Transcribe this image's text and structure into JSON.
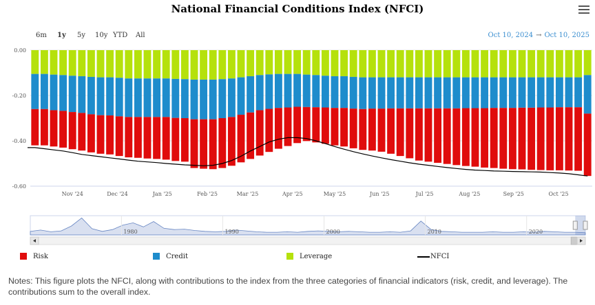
{
  "title": "National Financial Conditions Index (NFCI)",
  "range_buttons": [
    {
      "label": "6m",
      "active": false
    },
    {
      "label": "1y",
      "active": true
    },
    {
      "label": "5y",
      "active": false
    },
    {
      "label": "10y",
      "active": false
    },
    {
      "label": "YTD",
      "active": false
    },
    {
      "label": "All",
      "active": false
    }
  ],
  "date_range": {
    "from": "Oct 10, 2024",
    "arrow": "→",
    "to": "Oct 10, 2025"
  },
  "chart_data": {
    "type": "bar",
    "stacked": true,
    "title": "National Financial Conditions Index (NFCI)",
    "ylim": [
      -0.6,
      0.0
    ],
    "yticks": [
      "0.00",
      "-0.20",
      "-0.40",
      "-0.60"
    ],
    "ytick_values": [
      0.0,
      -0.2,
      -0.4,
      -0.6
    ],
    "xticks": [
      "Nov '24",
      "Dec '24",
      "Jan '25",
      "Feb '25",
      "Mar '25",
      "Apr '25",
      "May '25",
      "Jun '25",
      "Jul '25",
      "Aug '25",
      "Sep '25",
      "Oct '25"
    ],
    "xtick_weeks": [
      4.5,
      9.3,
      14.1,
      18.9,
      23.2,
      28.0,
      32.5,
      37.3,
      42.1,
      46.9,
      51.6,
      56.4
    ],
    "weeks": 60,
    "series": [
      {
        "name": "Leverage",
        "color": "#b5e10c",
        "values": [
          -0.105,
          -0.105,
          -0.108,
          -0.11,
          -0.113,
          -0.115,
          -0.118,
          -0.12,
          -0.12,
          -0.122,
          -0.125,
          -0.125,
          -0.125,
          -0.125,
          -0.125,
          -0.127,
          -0.128,
          -0.13,
          -0.13,
          -0.13,
          -0.128,
          -0.125,
          -0.12,
          -0.115,
          -0.11,
          -0.107,
          -0.105,
          -0.105,
          -0.105,
          -0.108,
          -0.11,
          -0.113,
          -0.115,
          -0.115,
          -0.118,
          -0.12,
          -0.12,
          -0.12,
          -0.12,
          -0.12,
          -0.12,
          -0.12,
          -0.12,
          -0.12,
          -0.12,
          -0.12,
          -0.12,
          -0.12,
          -0.12,
          -0.12,
          -0.12,
          -0.12,
          -0.12,
          -0.12,
          -0.12,
          -0.12,
          -0.12,
          -0.12,
          -0.12,
          -0.11
        ]
      },
      {
        "name": "Credit",
        "color": "#1e8ccc",
        "values": [
          -0.155,
          -0.155,
          -0.157,
          -0.158,
          -0.16,
          -0.162,
          -0.165,
          -0.167,
          -0.168,
          -0.17,
          -0.17,
          -0.17,
          -0.17,
          -0.17,
          -0.17,
          -0.172,
          -0.172,
          -0.175,
          -0.175,
          -0.175,
          -0.172,
          -0.17,
          -0.165,
          -0.16,
          -0.155,
          -0.152,
          -0.15,
          -0.148,
          -0.145,
          -0.143,
          -0.142,
          -0.14,
          -0.14,
          -0.14,
          -0.14,
          -0.14,
          -0.138,
          -0.138,
          -0.137,
          -0.137,
          -0.137,
          -0.137,
          -0.137,
          -0.137,
          -0.137,
          -0.137,
          -0.136,
          -0.136,
          -0.136,
          -0.135,
          -0.135,
          -0.135,
          -0.134,
          -0.134,
          -0.133,
          -0.133,
          -0.132,
          -0.132,
          -0.132,
          -0.17
        ]
      },
      {
        "name": "Risk",
        "color": "#e00c0c",
        "values": [
          -0.16,
          -0.16,
          -0.16,
          -0.162,
          -0.164,
          -0.166,
          -0.168,
          -0.17,
          -0.172,
          -0.175,
          -0.178,
          -0.18,
          -0.183,
          -0.185,
          -0.188,
          -0.19,
          -0.192,
          -0.215,
          -0.218,
          -0.22,
          -0.22,
          -0.215,
          -0.21,
          -0.205,
          -0.2,
          -0.19,
          -0.18,
          -0.17,
          -0.16,
          -0.15,
          -0.155,
          -0.16,
          -0.165,
          -0.17,
          -0.175,
          -0.18,
          -0.185,
          -0.19,
          -0.2,
          -0.21,
          -0.22,
          -0.23,
          -0.235,
          -0.24,
          -0.245,
          -0.25,
          -0.255,
          -0.258,
          -0.262,
          -0.265,
          -0.268,
          -0.27,
          -0.272,
          -0.274,
          -0.276,
          -0.277,
          -0.278,
          -0.279,
          -0.28,
          -0.275
        ]
      },
      {
        "name": "NFCI",
        "color": "#000000",
        "kind": "line",
        "values": [
          -0.43,
          -0.435,
          -0.44,
          -0.445,
          -0.452,
          -0.46,
          -0.465,
          -0.47,
          -0.475,
          -0.48,
          -0.485,
          -0.49,
          -0.493,
          -0.496,
          -0.5,
          -0.503,
          -0.506,
          -0.508,
          -0.51,
          -0.508,
          -0.5,
          -0.487,
          -0.468,
          -0.445,
          -0.425,
          -0.405,
          -0.393,
          -0.386,
          -0.386,
          -0.39,
          -0.4,
          -0.412,
          -0.425,
          -0.437,
          -0.448,
          -0.458,
          -0.467,
          -0.475,
          -0.483,
          -0.49,
          -0.497,
          -0.503,
          -0.508,
          -0.513,
          -0.518,
          -0.522,
          -0.526,
          -0.529,
          -0.531,
          -0.533,
          -0.534,
          -0.535,
          -0.536,
          -0.537,
          -0.538,
          -0.54,
          -0.542,
          -0.545,
          -0.55,
          -0.555
        ]
      }
    ],
    "legend": [
      "Risk",
      "Credit",
      "Leverage",
      "NFCI"
    ],
    "navigator": {
      "years": [
        "1980",
        "1990",
        "2000",
        "2010",
        "2020"
      ],
      "year_positions": [
        1980,
        1990,
        2000,
        2010,
        2020
      ],
      "year_start": 1971,
      "year_end": 2025.8,
      "values": [
        0.2,
        0.5,
        0.1,
        0.3,
        1.4,
        3.2,
        0.8,
        0.2,
        0.6,
        1.6,
        2.1,
        1.2,
        2.4,
        0.9,
        0.6,
        0.7,
        0.4,
        0.2,
        0.1,
        0.2,
        0.5,
        0.3,
        0.1,
        0.0,
        0.0,
        0.1,
        0.0,
        0.2,
        0.3,
        0.2,
        0.1,
        0.2,
        0.1,
        0.0,
        0.0,
        0.1,
        0.0,
        0.3,
        2.5,
        0.6,
        0.2,
        0.1,
        0.0,
        0.0,
        0.0,
        0.1,
        0.0,
        0.0,
        0.1,
        0.0,
        0.2,
        0.1,
        0.0,
        0.0,
        -0.1
      ]
    }
  },
  "notes": "Notes: This figure plots the NFCI, along with contributions to the index from the three categories of financial indicators (risk, credit, and leverage). The contributions sum to the overall index."
}
